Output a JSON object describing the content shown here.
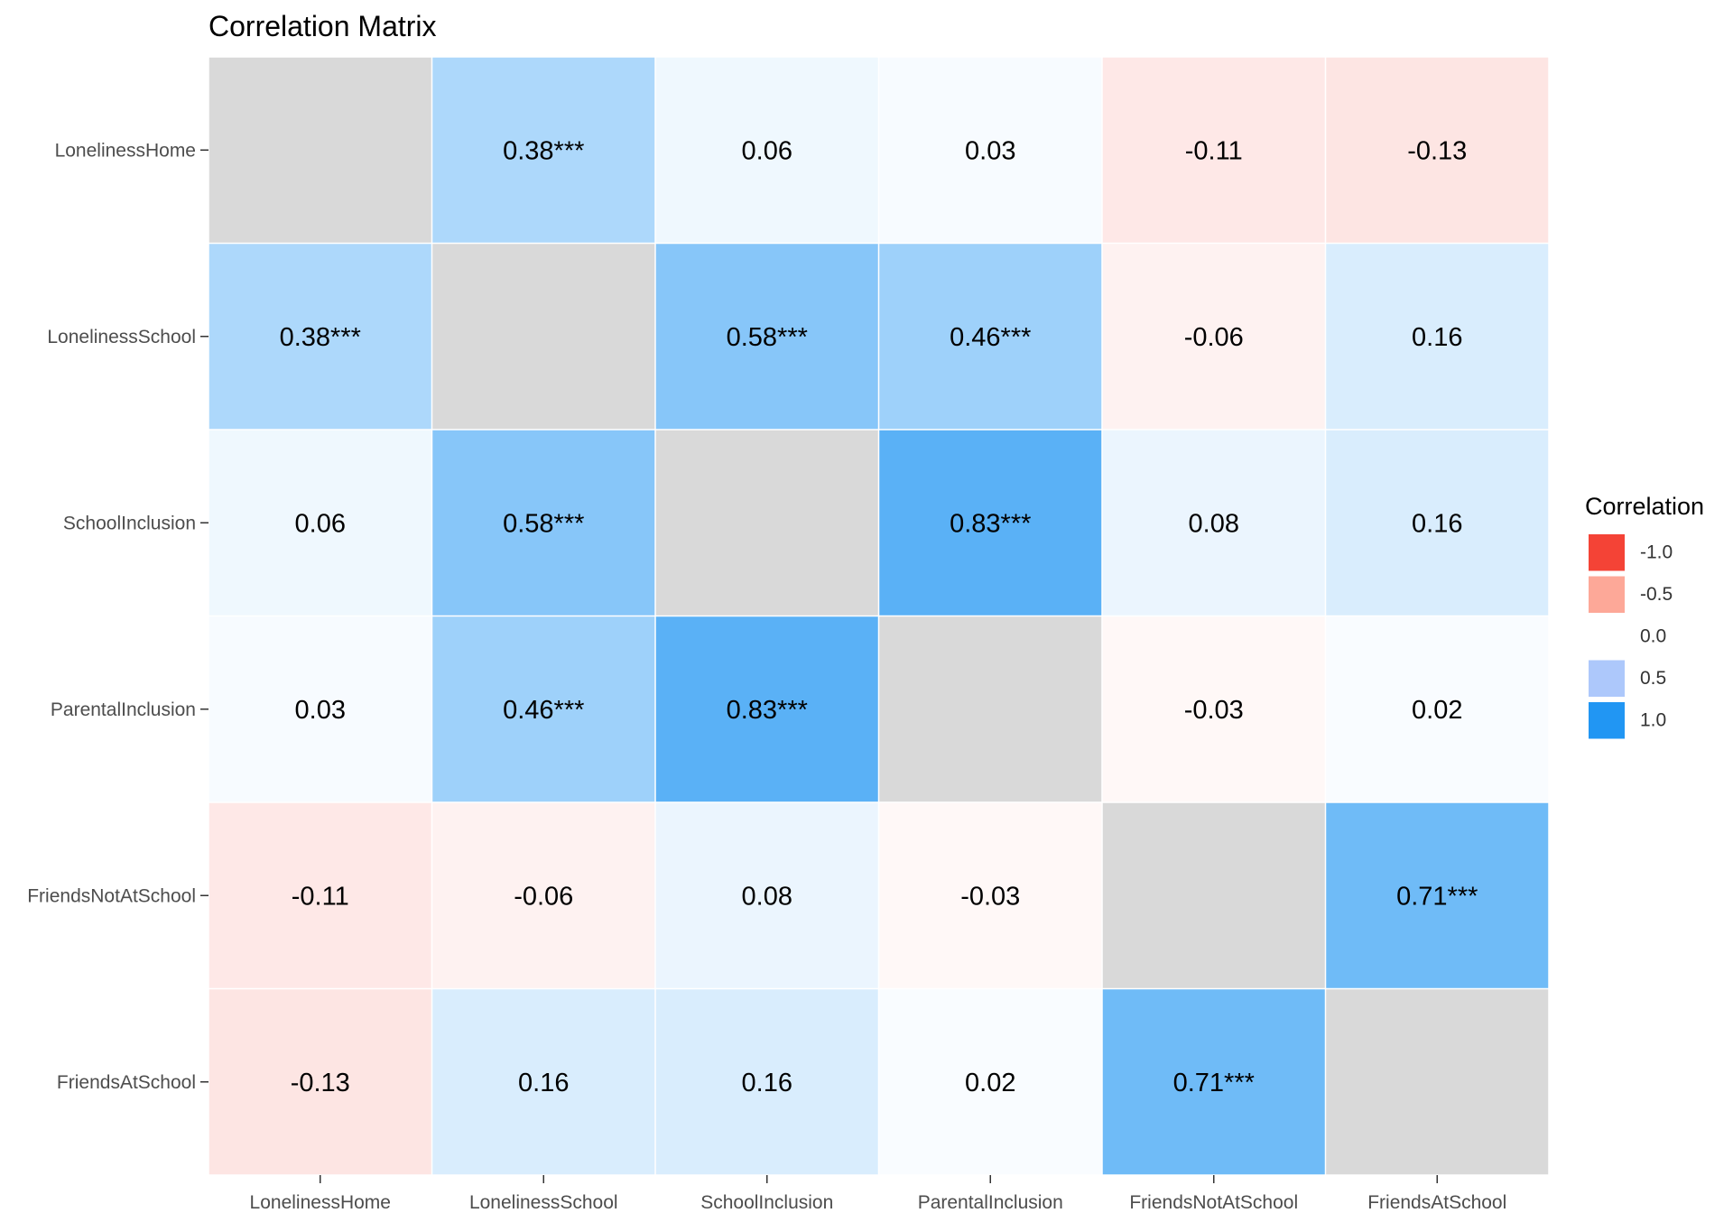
{
  "chart_data": {
    "type": "heatmap",
    "title": "Correlation Matrix",
    "variables": [
      "LonelinessHome",
      "LonelinessSchool",
      "SchoolInclusion",
      "ParentalInclusion",
      "FriendsNotAtSchool",
      "FriendsAtSchool"
    ],
    "values": [
      [
        null,
        0.38,
        0.06,
        0.03,
        -0.11,
        -0.13
      ],
      [
        0.38,
        null,
        0.58,
        0.46,
        -0.06,
        0.16
      ],
      [
        0.06,
        0.58,
        null,
        0.83,
        0.08,
        0.16
      ],
      [
        0.03,
        0.46,
        0.83,
        null,
        -0.03,
        0.02
      ],
      [
        -0.11,
        -0.06,
        0.08,
        -0.03,
        null,
        0.71
      ],
      [
        -0.13,
        0.16,
        0.16,
        0.02,
        0.71,
        null
      ]
    ],
    "labels": [
      [
        "",
        "0.38***",
        "0.06",
        "0.03",
        "-0.11",
        "-0.13"
      ],
      [
        "0.38***",
        "",
        "0.58***",
        "0.46***",
        "-0.06",
        "0.16"
      ],
      [
        "0.06",
        "0.58***",
        "",
        "0.83***",
        "0.08",
        "0.16"
      ],
      [
        "0.03",
        "0.46***",
        "0.83***",
        "",
        "-0.03",
        "0.02"
      ],
      [
        "-0.11",
        "-0.06",
        "0.08",
        "-0.03",
        "",
        "0.71***"
      ],
      [
        "-0.13",
        "0.16",
        "0.16",
        "0.02",
        "0.71***",
        ""
      ]
    ],
    "diagonal_color": "#d9d9d9",
    "color_scale": {
      "low": "#f44336",
      "mid": "#ffffff",
      "high": "#2196f3",
      "limits": [
        -1,
        1
      ]
    },
    "legend": {
      "title": "Correlation",
      "position": "right",
      "entries": [
        {
          "value": -1.0,
          "label": "-1.0",
          "color": "#f44336"
        },
        {
          "value": -0.5,
          "label": "-0.5",
          "color": "#fda898"
        },
        {
          "value": 0.0,
          "label": "0.0",
          "color": "#ffffff"
        },
        {
          "value": 0.5,
          "label": "0.5",
          "color": "#adc8fb"
        },
        {
          "value": 1.0,
          "label": "1.0",
          "color": "#2196f3"
        }
      ]
    },
    "grid": false
  }
}
